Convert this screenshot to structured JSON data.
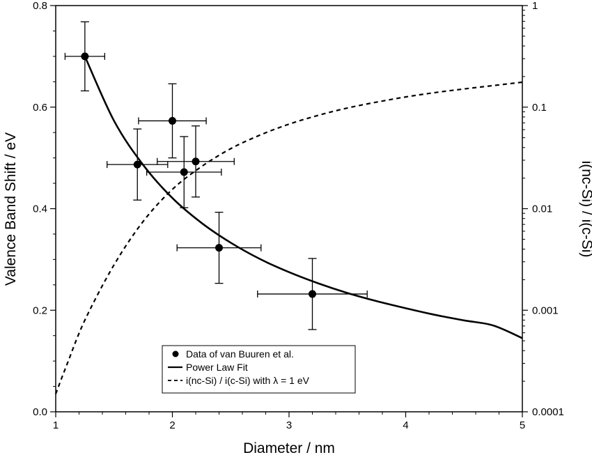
{
  "chart_data": {
    "type": "scatter",
    "xlabel": "Diameter / nm",
    "ylabel": "Valence Band Shift / eV",
    "y2label": "i(nc-Si) / i(c-Si)",
    "xlim": [
      1,
      5
    ],
    "ylim": [
      0,
      0.8
    ],
    "y2lim": [
      0.0001,
      1
    ],
    "y2scale": "log",
    "xticks": [
      1,
      2,
      3,
      4,
      5
    ],
    "xticklabels": [
      "1",
      "2",
      "3",
      "4",
      "5"
    ],
    "yticks": [
      0,
      0.2,
      0.4,
      0.6,
      0.8
    ],
    "yticklabels": [
      "0.0",
      "0.2",
      "0.4",
      "0.6",
      "0.8"
    ],
    "y2ticks": [
      0.0001,
      0.001,
      0.01,
      0.1,
      1
    ],
    "y2ticklabels": [
      "0.0001",
      "0.001",
      "0.01",
      "0.1",
      "1"
    ],
    "legend_position": "bottom-center",
    "series": [
      {
        "name": "Data of van Buuren et al.",
        "kind": "points",
        "color": "#000000",
        "points": [
          {
            "x": 1.25,
            "y": 0.7,
            "xerr": 0.17,
            "yerr": 0.068
          },
          {
            "x": 1.7,
            "y": 0.487,
            "xerr": 0.26,
            "yerr": 0.07
          },
          {
            "x": 2.0,
            "y": 0.573,
            "xerr": 0.29,
            "yerr": 0.073
          },
          {
            "x": 2.1,
            "y": 0.472,
            "xerr": 0.32,
            "yerr": 0.07
          },
          {
            "x": 2.2,
            "y": 0.493,
            "xerr": 0.33,
            "yerr": 0.07
          },
          {
            "x": 2.4,
            "y": 0.323,
            "xerr": 0.36,
            "yerr": 0.07
          },
          {
            "x": 3.2,
            "y": 0.232,
            "xerr": 0.47,
            "yerr": 0.07
          }
        ]
      },
      {
        "name": "Power Law Fit",
        "kind": "line",
        "axis": "left",
        "color": "#000000",
        "x": [
          1.25,
          1.5,
          1.75,
          2.0,
          2.25,
          2.5,
          2.75,
          3.0,
          3.25,
          3.5,
          3.75,
          4.0,
          4.25,
          4.5,
          4.75,
          5.0
        ],
        "y": [
          0.7,
          0.573,
          0.486,
          0.421,
          0.372,
          0.333,
          0.301,
          0.275,
          0.253,
          0.234,
          0.218,
          0.204,
          0.191,
          0.18,
          0.17,
          0.145
        ]
      },
      {
        "name": "i(nc-Si) / i(c-Si) with λ = 1 eV",
        "kind": "line",
        "axis": "right",
        "dash": "dashed",
        "color": "#000000",
        "x": [
          1.0,
          1.1,
          1.25,
          1.5,
          1.75,
          2.0,
          2.25,
          2.5,
          2.75,
          3.0,
          3.25,
          3.5,
          3.75,
          4.0,
          4.25,
          4.5,
          4.75,
          5.0
        ],
        "y": [
          0.00015,
          0.0003,
          0.0008,
          0.0028,
          0.0075,
          0.0155,
          0.026,
          0.039,
          0.053,
          0.068,
          0.083,
          0.098,
          0.112,
          0.126,
          0.139,
          0.151,
          0.163,
          0.176
        ]
      }
    ]
  }
}
